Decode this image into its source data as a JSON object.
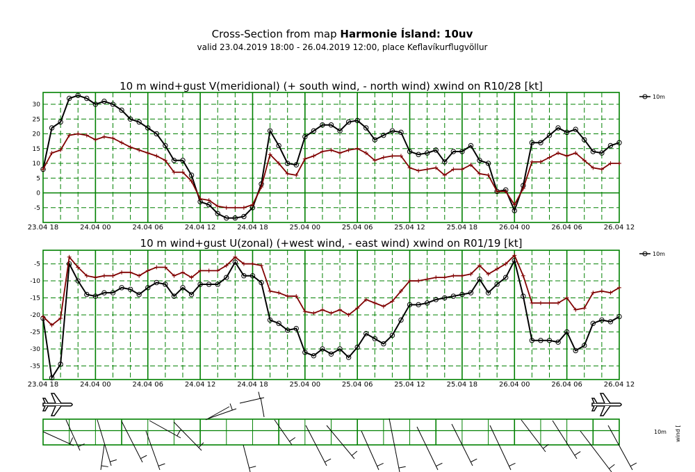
{
  "header": {
    "title_prefix": "Cross-Section from map",
    "title_bold": "Harmonie Ísland: 10uv",
    "subtitle": "valid 23.04.2019 18:00 - 26.04.2019 12:00, place Keflavíkurflugvöllur"
  },
  "colors": {
    "frame": "#008000",
    "mean": "#000000",
    "gust": "#800000"
  },
  "chart_data": [
    {
      "type": "line",
      "title": "10 m wind+gust V(meridional) (+ south wind, - north wind) xwind on R10/28 [kt]",
      "x_tick_labels": [
        "23.04 18",
        "24.04 00",
        "24.04 06",
        "24.04 12",
        "24.04 18",
        "25.04 00",
        "25.04 06",
        "25.04 12",
        "25.04 18",
        "26.04 00",
        "26.04 06",
        "26.04 12"
      ],
      "x_range_hours": [
        0,
        66
      ],
      "ylim": [
        -10,
        34
      ],
      "y_ticks": [
        -5,
        0,
        5,
        10,
        15,
        20,
        25,
        30
      ],
      "legend": "10m",
      "series": [
        {
          "name": "10m",
          "marker": "circle",
          "values": [
            8,
            22,
            24,
            32,
            33,
            32,
            30,
            31,
            30,
            28,
            25,
            24,
            22,
            20,
            16,
            11,
            11,
            6,
            -3,
            -4,
            -7,
            -8.5,
            -8.5,
            -8,
            -5,
            3,
            21,
            16,
            10,
            9.5,
            19,
            21,
            23,
            23,
            21,
            24,
            24.5,
            22,
            18,
            19.5,
            21,
            20.5,
            14,
            13,
            13.5,
            14.5,
            10.5,
            14,
            14,
            16,
            11,
            10,
            0.5,
            1,
            -6,
            2.5,
            17,
            17,
            19.5,
            22,
            20.5,
            21.5,
            18,
            14,
            13.5,
            16,
            17
          ]
        },
        {
          "marker": "plus",
          "values": [
            8,
            13.5,
            14.5,
            19.5,
            20,
            19.5,
            18,
            19,
            18.5,
            17,
            15.5,
            14.5,
            13.5,
            12.5,
            11,
            7,
            7,
            4,
            -2,
            -2.5,
            -4.5,
            -5,
            -5,
            -5,
            -4,
            2,
            13,
            10,
            6.5,
            6,
            11.5,
            12.5,
            14,
            14.5,
            13.5,
            14.5,
            15,
            13.5,
            11,
            12,
            12.5,
            12.5,
            8.5,
            7.5,
            8,
            8.5,
            6,
            8,
            8,
            9.5,
            6.5,
            6,
            0.5,
            0.5,
            -4,
            1.5,
            10.5,
            10.5,
            12,
            13.5,
            12.5,
            13.5,
            11,
            8.5,
            8,
            10,
            10
          ]
        }
      ]
    },
    {
      "type": "line",
      "title": "10 m wind+gust U(zonal) (+west wind, - east wind) xwind on R01/19 [kt]",
      "x_tick_labels": [
        "23.04 18",
        "24.04 00",
        "24.04 06",
        "24.04 12",
        "24.04 18",
        "25.04 00",
        "25.04 06",
        "25.04 12",
        "25.04 18",
        "26.04 00",
        "26.04 06",
        "26.04 12"
      ],
      "x_range_hours": [
        0,
        66
      ],
      "ylim": [
        -39,
        -1
      ],
      "y_ticks": [
        -35,
        -30,
        -25,
        -20,
        -15,
        -10,
        -5
      ],
      "legend": "10m",
      "series": [
        {
          "name": "10m",
          "marker": "circle",
          "values": [
            -21,
            -38.5,
            -34.5,
            -5,
            -10,
            -14,
            -14.5,
            -13.5,
            -13.5,
            -12,
            -12.5,
            -14,
            -12,
            -10.5,
            -11,
            -14.5,
            -12,
            -14,
            -11,
            -11,
            -11,
            -9,
            -4.5,
            -8.5,
            -8.5,
            -10.5,
            -21.5,
            -22.5,
            -24.5,
            -24,
            -31,
            -32,
            -30,
            -31.5,
            -30,
            -32.5,
            -29.5,
            -25.5,
            -27,
            -28.5,
            -26,
            -21.5,
            -17,
            -17,
            -16.5,
            -15.5,
            -15,
            -14.5,
            -14,
            -13.5,
            -9.5,
            -13.5,
            -11,
            -9,
            -4,
            -14.5,
            -27.5,
            -27.5,
            -27.5,
            -28,
            -25,
            -30.5,
            -29,
            -22.5,
            -21.5,
            -22,
            -20.5
          ]
        },
        {
          "marker": "plus",
          "values": [
            -20.5,
            -23,
            -21,
            -3,
            -6,
            -8.5,
            -9,
            -8.5,
            -8.5,
            -7.5,
            -7.5,
            -8.5,
            -7,
            -6,
            -6,
            -8.5,
            -7.5,
            -9,
            -7,
            -7,
            -7,
            -5.5,
            -3,
            -5,
            -5,
            -5.5,
            -13,
            -13.5,
            -14.5,
            -14.5,
            -19,
            -19.5,
            -18.5,
            -19.5,
            -18.5,
            -20,
            -18,
            -15.5,
            -16.5,
            -17.5,
            -16,
            -13,
            -10,
            -10,
            -9.5,
            -9,
            -9,
            -8.5,
            -8.5,
            -8,
            -5.5,
            -8,
            -6.5,
            -5,
            -2.5,
            -8.5,
            -16.5,
            -16.5,
            -16.5,
            -16.5,
            -15,
            -18.5,
            -18,
            -13.5,
            -13,
            -13.5,
            -12
          ]
        }
      ]
    }
  ],
  "barb_panel": {
    "legend_level": "10m",
    "legend_label": "wind ["
  }
}
